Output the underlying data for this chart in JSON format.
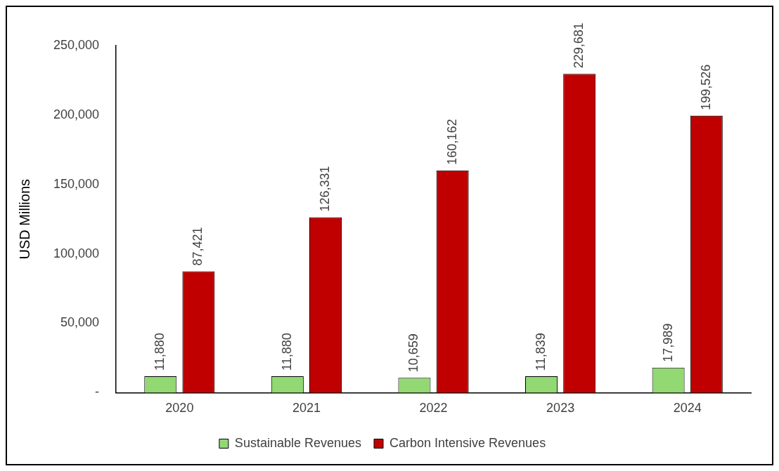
{
  "chart_data": {
    "type": "bar",
    "ylabel": "USD Millions",
    "categories": [
      "2020",
      "2021",
      "2022",
      "2023",
      "2024"
    ],
    "series": [
      {
        "name": "Sustainable Revenues",
        "color": "#92d873",
        "values": [
          11880,
          11880,
          10659,
          11839,
          17989
        ],
        "value_labels": [
          "11,880",
          "11,880",
          "10,659",
          "11,839",
          "17,989"
        ]
      },
      {
        "name": "Carbon Intensive Revenues",
        "color": "#c00000",
        "values": [
          87421,
          126331,
          160162,
          229681,
          199526
        ],
        "value_labels": [
          "87,421",
          "126,331",
          "160,162",
          "229,681",
          "199,526"
        ]
      }
    ],
    "ylim": [
      0,
      250000
    ],
    "yticks": [
      {
        "value": 0,
        "label": "-"
      },
      {
        "value": 50000,
        "label": "50,000"
      },
      {
        "value": 100000,
        "label": "100,000"
      },
      {
        "value": 150000,
        "label": "150,000"
      },
      {
        "value": 200000,
        "label": "200,000"
      },
      {
        "value": 250000,
        "label": "250,000"
      }
    ],
    "grid": false,
    "legend": "bottom"
  }
}
